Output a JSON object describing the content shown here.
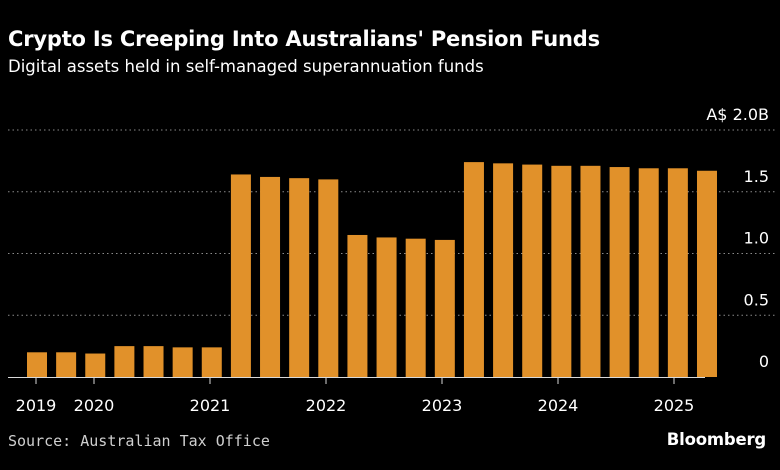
{
  "title": "Crypto Is Creeping Into Australians' Pension Funds",
  "subtitle": "Digital assets held in self-managed superannuation funds",
  "source": "Source: Australian Tax Office",
  "brand": "Bloomberg",
  "colors": {
    "background": "#000000",
    "bar": "#E1912A",
    "grid": "#8a8a8a",
    "text": "#ffffff"
  },
  "chart_data": {
    "type": "bar",
    "x": [
      "2019-03",
      "2019-06",
      "2019-09",
      "2019-12",
      "2020-03",
      "2020-06",
      "2020-09",
      "2020-12",
      "2021-03",
      "2021-06",
      "2021-09",
      "2021-12",
      "2022-03",
      "2022-06",
      "2022-09",
      "2022-12",
      "2023-03",
      "2023-06",
      "2023-09",
      "2023-12",
      "2024-03",
      "2024-06",
      "2024-09",
      "2024-12"
    ],
    "values": [
      0.2,
      0.2,
      0.19,
      0.25,
      0.25,
      0.24,
      0.24,
      1.64,
      1.62,
      1.61,
      1.6,
      1.15,
      1.13,
      1.12,
      1.11,
      1.74,
      1.73,
      1.72,
      1.71,
      1.71,
      1.7,
      1.69,
      1.69,
      1.67
    ],
    "x_tick_labels": [
      "2019",
      "2020",
      "2021",
      "2022",
      "2023",
      "2024",
      "2025"
    ],
    "y_ticks": [
      0,
      0.5,
      1.0,
      1.5,
      2.0
    ],
    "y_tick_labels": [
      "0",
      "0.5",
      "1.0",
      "1.5",
      "A$ 2.0B"
    ],
    "ylim": [
      0,
      2.0
    ],
    "y_axis_side": "right",
    "grid": true,
    "title": "Crypto Is Creeping Into Australians' Pension Funds",
    "xlabel": "",
    "ylabel": ""
  }
}
